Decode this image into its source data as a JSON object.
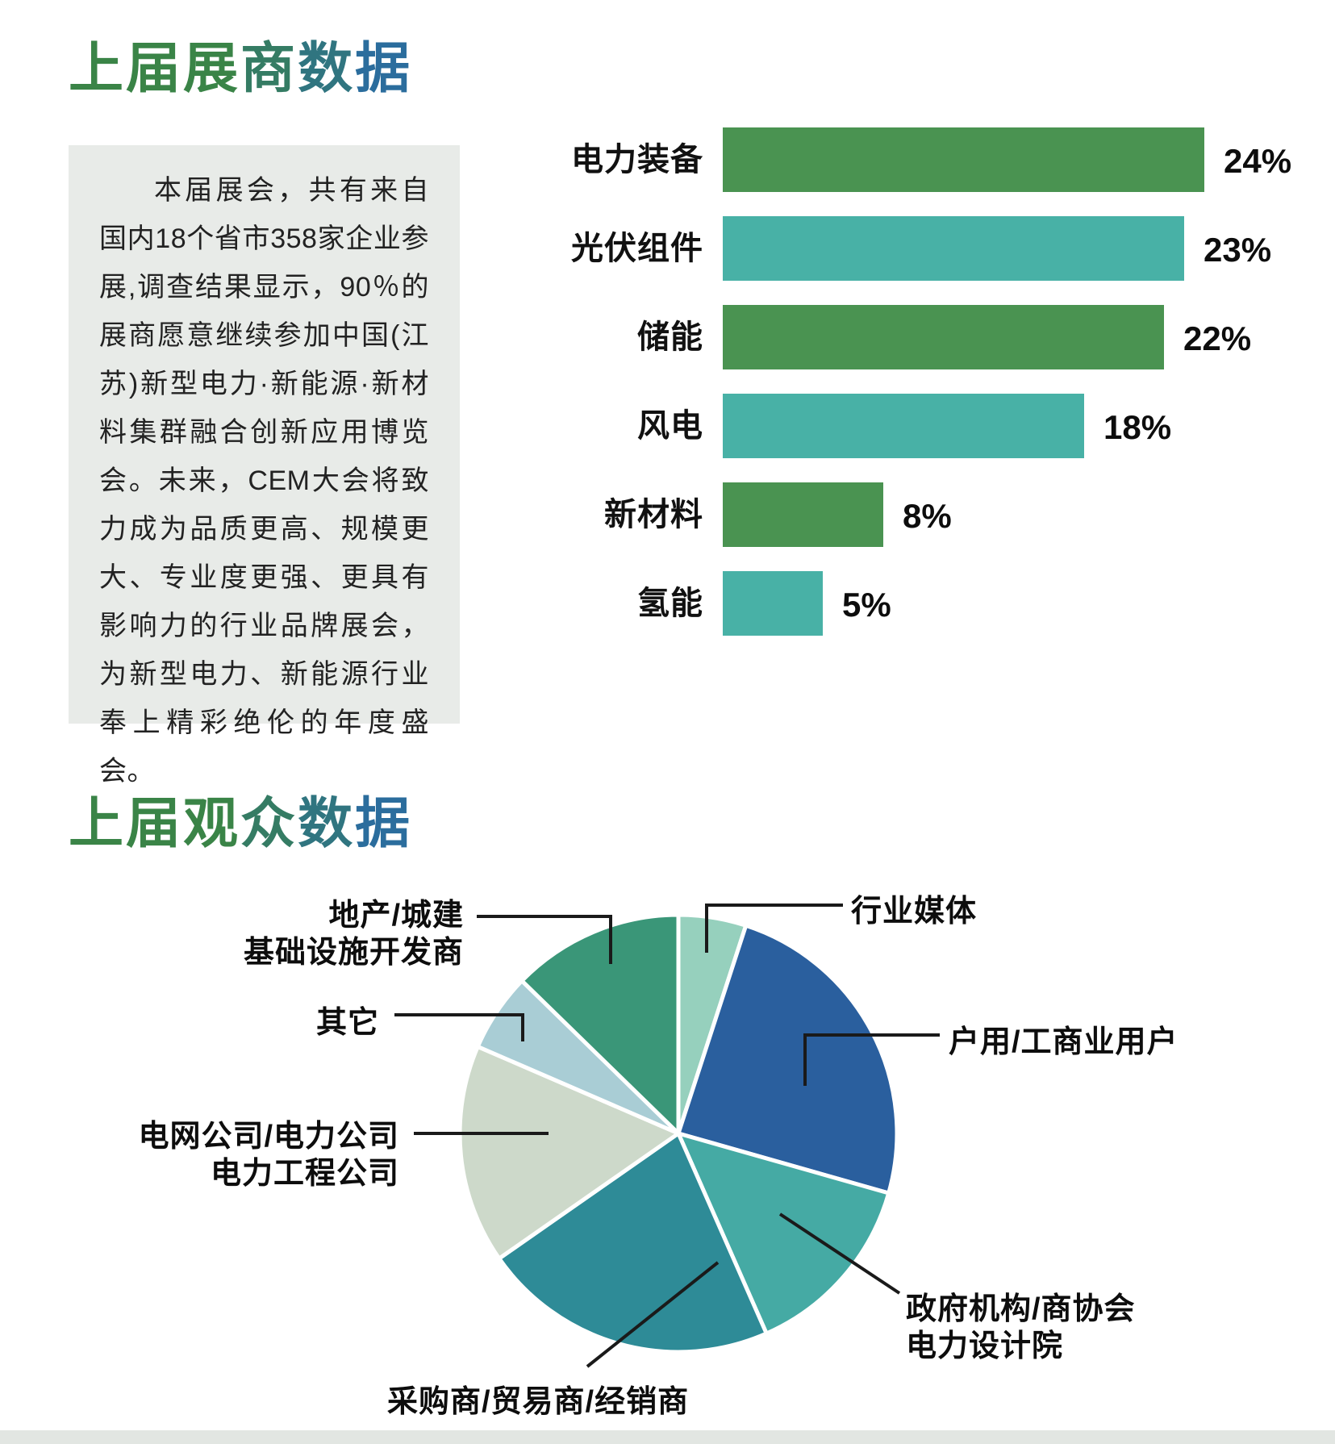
{
  "exhibitor_section": {
    "title": "上届展商数据",
    "intro_text": "本届展会，共有来自国内18个省市358家企业参展,调查结果显示，90％的展商愿意继续参加中国(江苏)新型电力·新能源·新材料集群融合创新应用博览会。未来，CEM大会将致力成为品质更高、规模更大、专业度更强、更具有影响力的行业品牌展会，为新型电力、新能源行业奉上精彩绝伦的年度盛会。"
  },
  "visitor_section": {
    "title": "上届观众数据"
  },
  "colors": {
    "title_gradient_start": "#3a8447",
    "title_gradient_end": "#2b6d9d",
    "intro_box_bg": "#e8ebe8",
    "footer_strip_bg": "#e2e6e2",
    "bar_green": "#4a9351",
    "bar_teal": "#48b1a6",
    "leader_line": "#1a1a1a"
  },
  "chart_data": [
    {
      "type": "bar",
      "orientation": "horizontal",
      "title": "上届展商数据",
      "categories": [
        "电力装备",
        "光伏组件",
        "储能",
        "风电",
        "新材料",
        "氢能"
      ],
      "values": [
        24,
        23,
        22,
        18,
        8,
        5
      ],
      "unit": "%",
      "value_labels": [
        "24%",
        "23%",
        "22%",
        "18%",
        "8%",
        "5%"
      ],
      "bar_colors": [
        "#4a9351",
        "#48b1a6",
        "#4a9351",
        "#48b1a6",
        "#4a9351",
        "#48b1a6"
      ],
      "xlim": [
        0,
        24
      ],
      "grid": false,
      "value_label_position": "right-of-bar"
    },
    {
      "type": "pie",
      "title": "上届观众数据",
      "start_angle_deg": 0,
      "clockwise": true,
      "slices": [
        {
          "label": "行业媒体",
          "value": 5.0,
          "color": "#96d0bd"
        },
        {
          "label": "户用/工商业用户",
          "value": 24.4,
          "color": "#2a5f9e"
        },
        {
          "label": "政府机构/商协会 电力设计院",
          "label_lines": [
            "政府机构/商协会",
            "电力设计院"
          ],
          "value": 14.0,
          "color": "#45aaa4"
        },
        {
          "label": "采购商/贸易商/经销商",
          "value": 21.9,
          "color": "#2e8b97"
        },
        {
          "label": "电网公司/电力公司 电力工程公司",
          "label_lines": [
            "电网公司/电力公司",
            "电力工程公司"
          ],
          "value": 16.2,
          "color": "#cdd9ca"
        },
        {
          "label": "其它",
          "value": 5.8,
          "color": "#a9cdd5"
        },
        {
          "label": "地产/城建 基础设施开发商",
          "label_lines": [
            "地产/城建",
            "基础设施开发商"
          ],
          "value": 12.7,
          "color": "#3a9678"
        }
      ]
    }
  ]
}
